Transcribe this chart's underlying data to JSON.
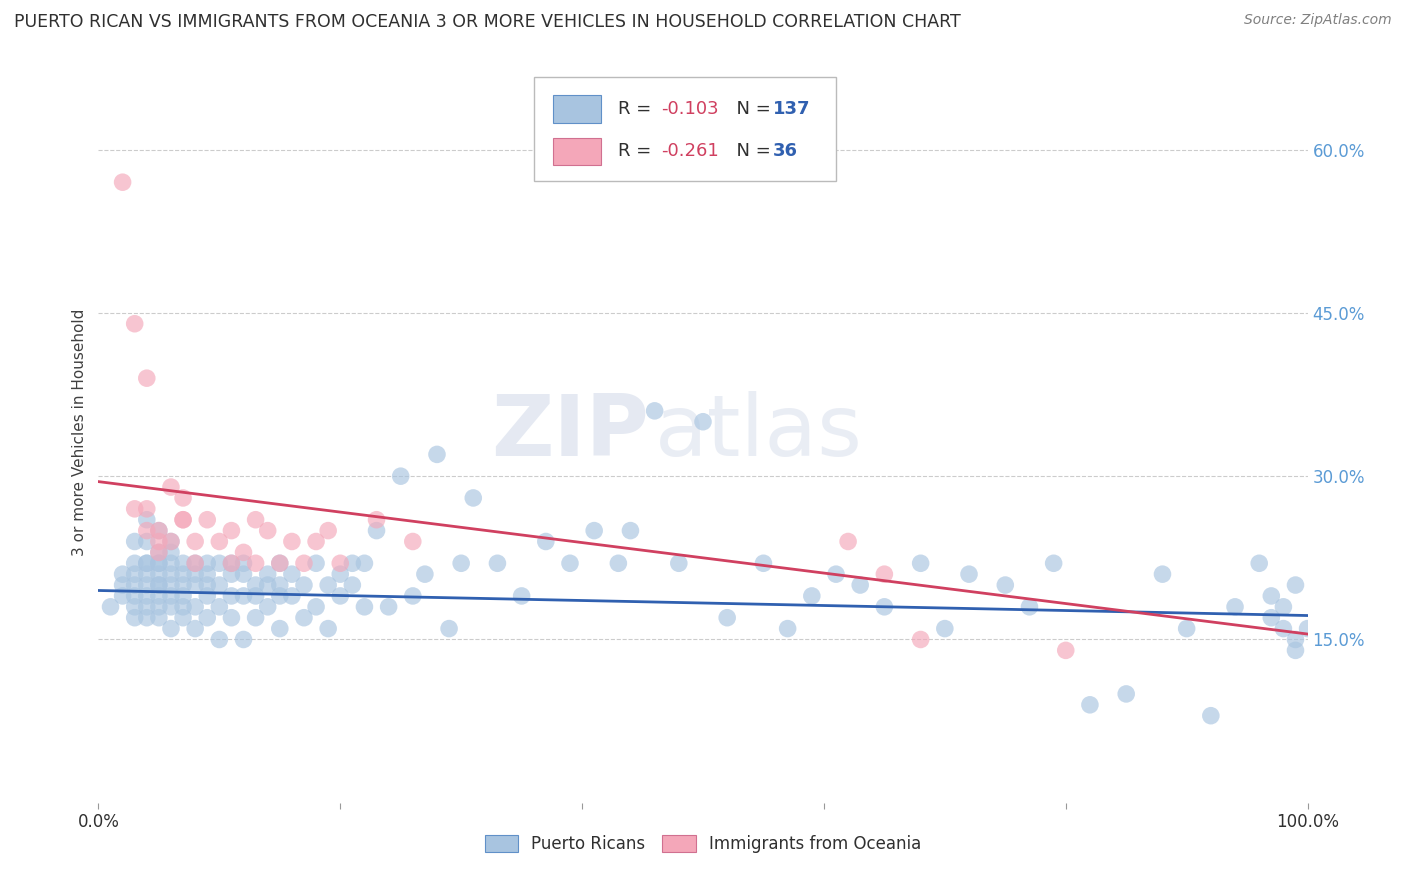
{
  "title": "PUERTO RICAN VS IMMIGRANTS FROM OCEANIA 3 OR MORE VEHICLES IN HOUSEHOLD CORRELATION CHART",
  "source": "Source: ZipAtlas.com",
  "ylabel": "3 or more Vehicles in Household",
  "legend_labels": [
    "Puerto Ricans",
    "Immigrants from Oceania"
  ],
  "blue_R": -0.103,
  "blue_N": 137,
  "pink_R": -0.261,
  "pink_N": 36,
  "blue_color": "#a8c4e0",
  "pink_color": "#f4a7b9",
  "blue_line_color": "#3060b0",
  "pink_line_color": "#d04060",
  "title_color": "#303030",
  "source_color": "#808080",
  "right_axis_color": "#5b9bd5",
  "ylabel_color": "#404040",
  "xlim": [
    0.0,
    1.0
  ],
  "ylim": [
    0.0,
    0.68
  ],
  "right_yticks": [
    0.15,
    0.3,
    0.45,
    0.6
  ],
  "right_yticklabels": [
    "15.0%",
    "30.0%",
    "45.0%",
    "60.0%"
  ],
  "blue_scatter_x": [
    0.01,
    0.02,
    0.02,
    0.02,
    0.03,
    0.03,
    0.03,
    0.03,
    0.03,
    0.03,
    0.03,
    0.04,
    0.04,
    0.04,
    0.04,
    0.04,
    0.04,
    0.04,
    0.04,
    0.04,
    0.05,
    0.05,
    0.05,
    0.05,
    0.05,
    0.05,
    0.05,
    0.05,
    0.05,
    0.05,
    0.06,
    0.06,
    0.06,
    0.06,
    0.06,
    0.06,
    0.06,
    0.06,
    0.07,
    0.07,
    0.07,
    0.07,
    0.07,
    0.07,
    0.08,
    0.08,
    0.08,
    0.08,
    0.08,
    0.09,
    0.09,
    0.09,
    0.09,
    0.09,
    0.1,
    0.1,
    0.1,
    0.1,
    0.11,
    0.11,
    0.11,
    0.11,
    0.12,
    0.12,
    0.12,
    0.12,
    0.13,
    0.13,
    0.13,
    0.14,
    0.14,
    0.14,
    0.15,
    0.15,
    0.15,
    0.15,
    0.16,
    0.16,
    0.17,
    0.17,
    0.18,
    0.18,
    0.19,
    0.19,
    0.2,
    0.2,
    0.21,
    0.21,
    0.22,
    0.22,
    0.23,
    0.24,
    0.25,
    0.26,
    0.27,
    0.28,
    0.29,
    0.3,
    0.31,
    0.33,
    0.35,
    0.37,
    0.39,
    0.41,
    0.43,
    0.44,
    0.46,
    0.48,
    0.5,
    0.52,
    0.55,
    0.57,
    0.59,
    0.61,
    0.63,
    0.65,
    0.68,
    0.7,
    0.72,
    0.75,
    0.77,
    0.79,
    0.82,
    0.85,
    0.88,
    0.9,
    0.92,
    0.94,
    0.96,
    0.97,
    0.97,
    0.98,
    0.98,
    0.99,
    0.99,
    0.99,
    1.0
  ],
  "blue_scatter_y": [
    0.18,
    0.2,
    0.19,
    0.21,
    0.24,
    0.2,
    0.18,
    0.22,
    0.17,
    0.19,
    0.21,
    0.26,
    0.22,
    0.2,
    0.18,
    0.24,
    0.19,
    0.22,
    0.17,
    0.21,
    0.25,
    0.2,
    0.22,
    0.18,
    0.19,
    0.21,
    0.17,
    0.23,
    0.2,
    0.22,
    0.24,
    0.19,
    0.21,
    0.16,
    0.23,
    0.18,
    0.2,
    0.22,
    0.18,
    0.22,
    0.2,
    0.17,
    0.19,
    0.21,
    0.21,
    0.18,
    0.16,
    0.2,
    0.22,
    0.19,
    0.22,
    0.17,
    0.21,
    0.2,
    0.2,
    0.18,
    0.15,
    0.22,
    0.21,
    0.17,
    0.19,
    0.22,
    0.22,
    0.15,
    0.19,
    0.21,
    0.2,
    0.17,
    0.19,
    0.18,
    0.21,
    0.2,
    0.22,
    0.16,
    0.2,
    0.19,
    0.19,
    0.21,
    0.17,
    0.2,
    0.18,
    0.22,
    0.16,
    0.2,
    0.19,
    0.21,
    0.2,
    0.22,
    0.18,
    0.22,
    0.25,
    0.18,
    0.3,
    0.19,
    0.21,
    0.32,
    0.16,
    0.22,
    0.28,
    0.22,
    0.19,
    0.24,
    0.22,
    0.25,
    0.22,
    0.25,
    0.36,
    0.22,
    0.35,
    0.17,
    0.22,
    0.16,
    0.19,
    0.21,
    0.2,
    0.18,
    0.22,
    0.16,
    0.21,
    0.2,
    0.18,
    0.22,
    0.09,
    0.1,
    0.21,
    0.16,
    0.08,
    0.18,
    0.22,
    0.19,
    0.17,
    0.16,
    0.18,
    0.2,
    0.15,
    0.14,
    0.16
  ],
  "pink_scatter_x": [
    0.02,
    0.03,
    0.03,
    0.04,
    0.04,
    0.04,
    0.05,
    0.05,
    0.05,
    0.06,
    0.06,
    0.07,
    0.07,
    0.07,
    0.08,
    0.08,
    0.09,
    0.1,
    0.11,
    0.11,
    0.12,
    0.13,
    0.13,
    0.14,
    0.15,
    0.16,
    0.17,
    0.18,
    0.19,
    0.2,
    0.23,
    0.26,
    0.62,
    0.65,
    0.68,
    0.8
  ],
  "pink_scatter_y": [
    0.57,
    0.44,
    0.27,
    0.39,
    0.27,
    0.25,
    0.25,
    0.24,
    0.23,
    0.29,
    0.24,
    0.26,
    0.28,
    0.26,
    0.22,
    0.24,
    0.26,
    0.24,
    0.25,
    0.22,
    0.23,
    0.26,
    0.22,
    0.25,
    0.22,
    0.24,
    0.22,
    0.24,
    0.25,
    0.22,
    0.26,
    0.24,
    0.24,
    0.21,
    0.15,
    0.14
  ],
  "blue_line_x0": 0.0,
  "blue_line_y0": 0.195,
  "blue_line_x1": 1.0,
  "blue_line_y1": 0.172,
  "pink_line_x0": 0.0,
  "pink_line_y0": 0.295,
  "pink_line_x1": 1.0,
  "pink_line_y1": 0.155,
  "watermark_zip": "ZIP",
  "watermark_atlas": "atlas",
  "figsize": [
    14.06,
    8.92
  ],
  "dpi": 100
}
